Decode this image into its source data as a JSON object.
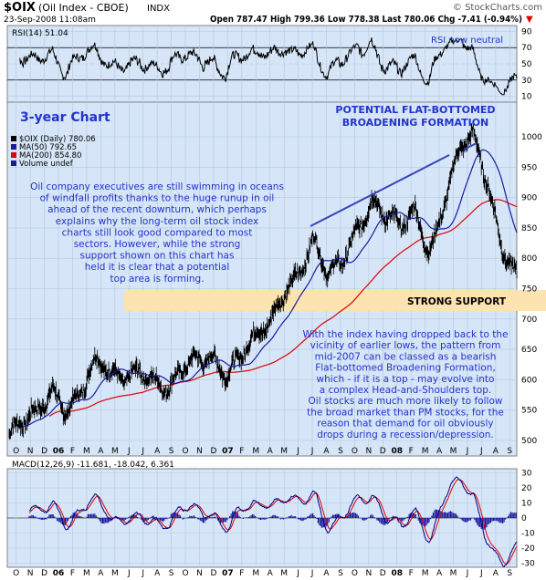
{
  "header": {
    "symbol": "$OIX",
    "name": "(Oil Index - CBOE)",
    "exchange": "INDX",
    "timestamp": "23-Sep-2008 11:08am",
    "ohlc": "Open 787.47 High 799.36 Low 778.38 Last 780.06 Chg -7.41 (-0.94%)",
    "chg_arrow": "▼",
    "watermark": "© StockCharts.com"
  },
  "rsi_panel": {
    "label": "RSI(14) 51.04",
    "annotation": "RSI now neutral",
    "ticks": [
      "90",
      "70",
      "50",
      "30",
      "10"
    ]
  },
  "main_panel": {
    "chart_title": "3-year Chart",
    "pattern_title_line1": "POTENTIAL FLAT-BOTTOMED",
    "pattern_title_line2": "BROADENING FORMATION",
    "legend": [
      {
        "text": "$OIX (Daily) 780.06",
        "color": "#000000"
      },
      {
        "text": "MA(50) 792.65",
        "color": "#1a1a9c"
      },
      {
        "text": "MA(200) 854.80",
        "color": "#e00000"
      },
      {
        "text": "Volume undef",
        "color": "#1a1a9c"
      }
    ],
    "support_label": "STRONG SUPPORT",
    "comment1": [
      "Oil company executives are still swimming in oceans",
      "of windfall profits thanks to the huge runup in oil",
      "ahead of the recent downturn, which perhaps",
      "explains why the long-term oil stock index",
      "charts still look good compared to most",
      "sectors. However, while the strong",
      "support shown on this chart has",
      "held it is clear that a potential",
      "top area is forming."
    ],
    "comment2": [
      "With the index having dropped back to the",
      "vicinity of earlier lows, the pattern from",
      "mid-2007 can be classed as a bearish",
      "Flat-bottomed Broadening Formation,",
      "which - if it is a top - may evolve into",
      "a complex Head-and-Shoulders top.",
      "Oil stocks are much more likely to follow",
      "the broad market than PM stocks, for the",
      "reason that demand for oil obviously",
      "drops during a recession/depression."
    ],
    "ticks": [
      "1000",
      "950",
      "900",
      "850",
      "800",
      "750",
      "700",
      "650",
      "600",
      "550",
      "500"
    ]
  },
  "macd_panel": {
    "label": "MACD(12,26,9) -11.681, -18.042, 6.361",
    "ticks": [
      "30",
      "20",
      "10",
      "0",
      "-10",
      "-20",
      "-30"
    ]
  },
  "x_axis": {
    "labels": [
      "O",
      "N",
      "D",
      "06",
      "F",
      "M",
      "A",
      "M",
      "J",
      "J",
      "A",
      "S",
      "O",
      "N",
      "D",
      "07",
      "F",
      "M",
      "A",
      "M",
      "J",
      "J",
      "A",
      "S",
      "O",
      "N",
      "D",
      "08",
      "F",
      "M",
      "A",
      "M",
      "J",
      "J",
      "A",
      "S"
    ]
  },
  "colors": {
    "background": "#d6e6f8",
    "price_bar": "#000000",
    "ma50": "#1a1a9c",
    "ma200": "#e00000",
    "support_band": "#fde3b0",
    "annotation_text": "#2233cc",
    "macd_line": "#000080",
    "macd_signal": "#e00000",
    "histogram": "#1a1a9c"
  },
  "chart_data": {
    "type": "line",
    "title": "$OIX (Oil Index - CBOE)",
    "x_range": [
      "2005-10",
      "2008-09"
    ],
    "price_ylim": [
      470,
      1040
    ],
    "price_monthly": [
      {
        "month": "2005-10",
        "close": 510
      },
      {
        "month": "2005-11",
        "close": 520
      },
      {
        "month": "2005-12",
        "close": 540
      },
      {
        "month": "2006-01",
        "close": 590
      },
      {
        "month": "2006-02",
        "close": 560
      },
      {
        "month": "2006-03",
        "close": 585
      },
      {
        "month": "2006-04",
        "close": 620
      },
      {
        "month": "2006-05",
        "close": 600
      },
      {
        "month": "2006-06",
        "close": 610
      },
      {
        "month": "2006-07",
        "close": 630
      },
      {
        "month": "2006-08",
        "close": 600
      },
      {
        "month": "2006-09",
        "close": 570
      },
      {
        "month": "2006-10",
        "close": 610
      },
      {
        "month": "2006-11",
        "close": 640
      },
      {
        "month": "2006-12",
        "close": 650
      },
      {
        "month": "2007-01",
        "close": 610
      },
      {
        "month": "2007-02",
        "close": 630
      },
      {
        "month": "2007-03",
        "close": 660
      },
      {
        "month": "2007-04",
        "close": 700
      },
      {
        "month": "2007-05",
        "close": 760
      },
      {
        "month": "2007-06",
        "close": 780
      },
      {
        "month": "2007-07",
        "close": 820
      },
      {
        "month": "2007-08",
        "close": 760
      },
      {
        "month": "2007-09",
        "close": 800
      },
      {
        "month": "2007-10",
        "close": 860
      },
      {
        "month": "2007-11",
        "close": 900
      },
      {
        "month": "2007-12",
        "close": 860
      },
      {
        "month": "2008-01",
        "close": 840
      },
      {
        "month": "2008-02",
        "close": 880
      },
      {
        "month": "2008-03",
        "close": 820
      },
      {
        "month": "2008-04",
        "close": 900
      },
      {
        "month": "2008-05",
        "close": 970
      },
      {
        "month": "2008-06",
        "close": 990
      },
      {
        "month": "2008-07",
        "close": 920
      },
      {
        "month": "2008-08",
        "close": 830
      },
      {
        "month": "2008-09",
        "close": 780
      }
    ],
    "ma50_last": 792.65,
    "ma200_last": 854.8,
    "rsi_last": 51.04,
    "macd_last": {
      "macd": -11.681,
      "signal": -18.042,
      "histogram": 6.361
    }
  }
}
